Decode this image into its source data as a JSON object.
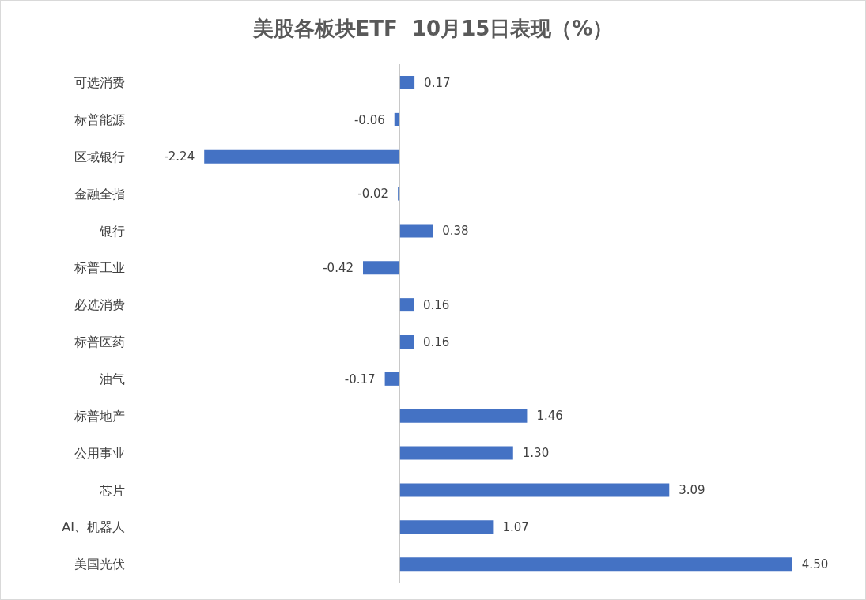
{
  "chart_data": {
    "type": "bar",
    "orientation": "horizontal",
    "title": "美股各板块ETF  10月15日表现（%）",
    "categories": [
      "可选消费",
      "标普能源",
      "区域银行",
      "金融全指",
      "银行",
      "标普工业",
      "必选消费",
      "标普医药",
      "油气",
      "标普地产",
      "公用事业",
      "芯片",
      "AI、机器人",
      "美国光伏"
    ],
    "values": [
      0.17,
      -0.06,
      -2.24,
      -0.02,
      0.38,
      -0.42,
      0.16,
      0.16,
      -0.17,
      1.46,
      1.3,
      3.09,
      1.07,
      4.5
    ],
    "value_labels": [
      "0.17",
      "-0.06",
      "-2.24",
      "-0.02",
      "0.38",
      "-0.42",
      "0.16",
      "0.16",
      "-0.17",
      "1.46",
      "1.30",
      "3.09",
      "1.07",
      "4.50"
    ],
    "color": "#4472c4"
  }
}
